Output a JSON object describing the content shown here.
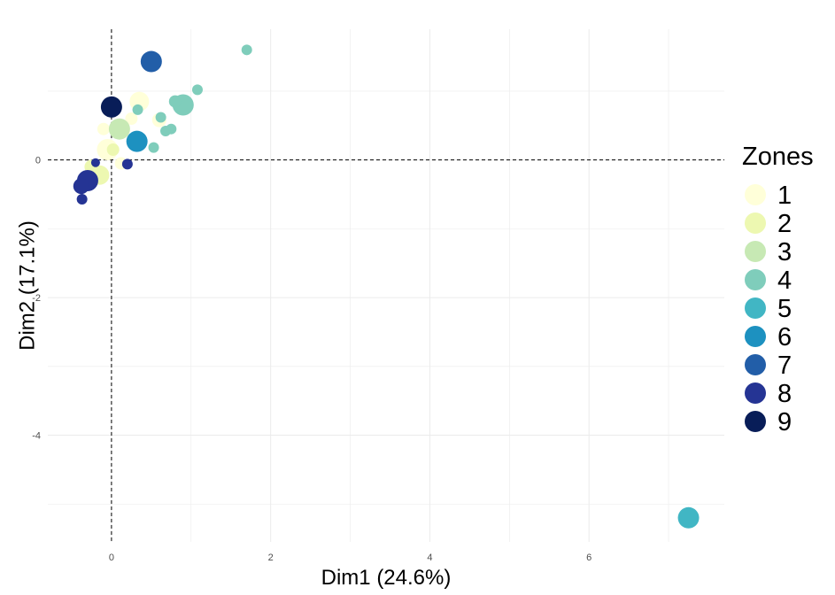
{
  "chart_data": {
    "type": "scatter",
    "xlabel": "Dim1 (24.6%)",
    "ylabel": "Dim2 (17.1%)",
    "xlim": [
      -0.8,
      7.7
    ],
    "ylim": [
      -5.55,
      1.9
    ],
    "xticks": [
      0,
      2,
      4,
      6
    ],
    "yticks": [
      0,
      -2,
      -4
    ],
    "grid": true,
    "reference_lines": {
      "x": 0,
      "y": 0,
      "style": "dashed"
    },
    "legend": {
      "title": "Zones",
      "placement": "right",
      "entries": [
        {
          "label": "1",
          "color": "#FFFFD9"
        },
        {
          "label": "2",
          "color": "#EDF8B1"
        },
        {
          "label": "3",
          "color": "#C7E9B4"
        },
        {
          "label": "4",
          "color": "#7FCDBB"
        },
        {
          "label": "5",
          "color": "#41B6C4"
        },
        {
          "label": "6",
          "color": "#1D91C0"
        },
        {
          "label": "7",
          "color": "#225EA8"
        },
        {
          "label": "8",
          "color": "#253494"
        },
        {
          "label": "9",
          "color": "#081D58"
        }
      ]
    },
    "points": [
      {
        "x": 0.35,
        "y": 0.85,
        "zone": "1",
        "size": 11
      },
      {
        "x": 0.6,
        "y": 0.58,
        "zone": "1",
        "size": 8
      },
      {
        "x": 0.25,
        "y": 0.6,
        "zone": "1",
        "size": 7
      },
      {
        "x": -0.05,
        "y": 0.15,
        "zone": "1",
        "size": 12
      },
      {
        "x": 0.12,
        "y": -0.05,
        "zone": "1",
        "size": 7
      },
      {
        "x": -0.1,
        "y": 0.45,
        "zone": "1",
        "size": 7
      },
      {
        "x": -0.15,
        "y": -0.22,
        "zone": "2",
        "size": 11
      },
      {
        "x": -0.25,
        "y": -0.1,
        "zone": "2",
        "size": 8
      },
      {
        "x": 0.02,
        "y": 0.15,
        "zone": "2",
        "size": 7
      },
      {
        "x": 0.1,
        "y": 0.45,
        "zone": "3",
        "size": 12
      },
      {
        "x": 0.9,
        "y": 0.8,
        "zone": "4",
        "size": 12
      },
      {
        "x": 0.8,
        "y": 0.85,
        "zone": "4",
        "size": 7
      },
      {
        "x": 1.08,
        "y": 1.02,
        "zone": "4",
        "size": 6
      },
      {
        "x": 1.7,
        "y": 1.6,
        "zone": "4",
        "size": 6
      },
      {
        "x": 0.62,
        "y": 0.62,
        "zone": "4",
        "size": 6
      },
      {
        "x": 0.33,
        "y": 0.73,
        "zone": "4",
        "size": 6
      },
      {
        "x": 0.75,
        "y": 0.45,
        "zone": "4",
        "size": 6
      },
      {
        "x": 0.68,
        "y": 0.42,
        "zone": "4",
        "size": 6
      },
      {
        "x": 0.53,
        "y": 0.18,
        "zone": "4",
        "size": 6
      },
      {
        "x": 7.25,
        "y": -5.2,
        "zone": "5",
        "size": 12
      },
      {
        "x": 0.32,
        "y": 0.27,
        "zone": "6",
        "size": 12
      },
      {
        "x": 0.5,
        "y": 1.43,
        "zone": "7",
        "size": 12
      },
      {
        "x": -0.3,
        "y": -0.3,
        "zone": "8",
        "size": 12
      },
      {
        "x": -0.38,
        "y": -0.38,
        "zone": "8",
        "size": 9
      },
      {
        "x": -0.37,
        "y": -0.57,
        "zone": "8",
        "size": 6
      },
      {
        "x": -0.2,
        "y": -0.04,
        "zone": "8",
        "size": 5
      },
      {
        "x": 0.2,
        "y": -0.06,
        "zone": "8",
        "size": 6
      },
      {
        "x": 0.0,
        "y": 0.77,
        "zone": "9",
        "size": 12
      }
    ]
  }
}
